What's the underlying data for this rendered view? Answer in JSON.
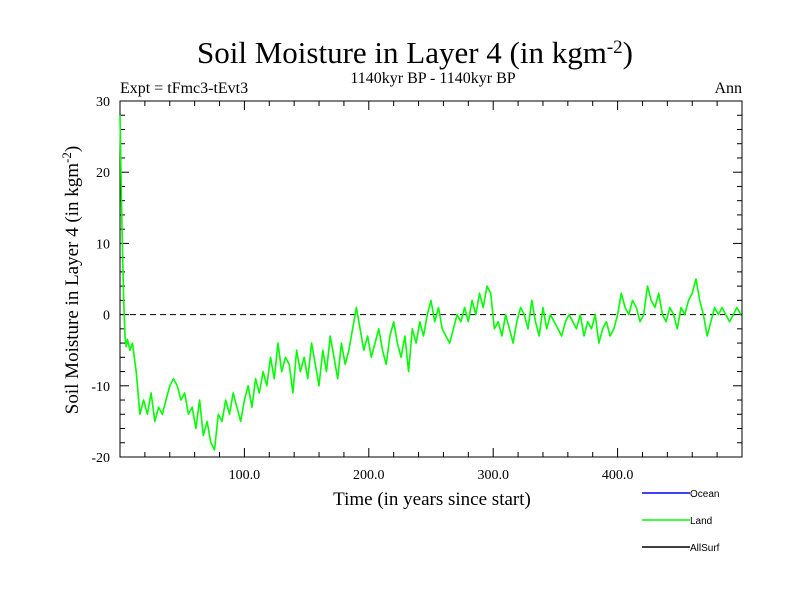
{
  "chart_data": {
    "type": "line",
    "title": "Soil Moisture in Layer 4 (in kgm",
    "title_superscript": "-2",
    "title_close": ")",
    "subtitle_left": "Expt = tFmc3-tEvt3",
    "subtitle_center": "1140kyr BP - 1140kyr BP",
    "subtitle_right": "Ann",
    "xlabel": "Time (in years since start)",
    "ylabel": "Soil Moisture in Layer 4 (in kgm",
    "ylabel_superscript": "-2",
    "ylabel_close": ")",
    "xlim": [
      0,
      500
    ],
    "ylim": [
      -20,
      30
    ],
    "xticks": [
      100,
      200,
      300,
      400
    ],
    "xtick_labels": [
      "100.0",
      "200.0",
      "300.0",
      "400.0"
    ],
    "yticks": [
      -20,
      -10,
      0,
      10,
      20,
      30
    ],
    "ytick_labels": [
      "-20",
      "-10",
      "0",
      "10",
      "20",
      "30"
    ],
    "reference_line": 0,
    "legend": [
      {
        "name": "Ocean",
        "color": "#0000ff"
      },
      {
        "name": "Land",
        "color": "#00ff00"
      },
      {
        "name": "AllSurf",
        "color": "#000000"
      }
    ],
    "series": [
      {
        "name": "Land",
        "color": "#00ff00",
        "x": [
          0,
          1,
          2,
          3,
          4,
          5,
          6,
          8,
          10,
          13,
          16,
          19,
          22,
          25,
          28,
          31,
          34,
          37,
          40,
          43,
          46,
          49,
          52,
          55,
          58,
          61,
          64,
          67,
          70,
          73,
          76,
          79,
          82,
          85,
          88,
          91,
          94,
          97,
          100,
          103,
          106,
          109,
          112,
          115,
          118,
          121,
          124,
          127,
          130,
          133,
          136,
          139,
          142,
          145,
          148,
          151,
          154,
          157,
          160,
          163,
          166,
          169,
          172,
          175,
          178,
          181,
          184,
          187,
          190,
          193,
          196,
          199,
          202,
          205,
          208,
          211,
          214,
          217,
          220,
          223,
          226,
          229,
          232,
          235,
          238,
          241,
          244,
          247,
          250,
          253,
          256,
          259,
          262,
          265,
          268,
          271,
          274,
          277,
          280,
          283,
          286,
          289,
          292,
          295,
          298,
          301,
          304,
          307,
          310,
          313,
          316,
          319,
          322,
          325,
          328,
          331,
          334,
          337,
          340,
          343,
          346,
          349,
          352,
          355,
          358,
          361,
          364,
          367,
          370,
          373,
          376,
          379,
          382,
          385,
          388,
          391,
          394,
          397,
          400,
          403,
          406,
          409,
          412,
          415,
          418,
          421,
          424,
          427,
          430,
          433,
          436,
          439,
          442,
          445,
          448,
          451,
          454,
          457,
          460,
          463,
          466,
          469,
          472,
          475,
          478,
          481,
          484,
          487,
          490,
          493,
          496,
          499
        ],
        "values": [
          28,
          18,
          9,
          2,
          -3,
          -4.5,
          -3.5,
          -5,
          -4,
          -8,
          -14,
          -12,
          -14,
          -11,
          -15,
          -13,
          -14,
          -12,
          -10,
          -9,
          -10,
          -12,
          -11,
          -14,
          -13,
          -16,
          -12,
          -17,
          -15,
          -18,
          -19,
          -14,
          -15,
          -12,
          -14,
          -11,
          -13,
          -15,
          -12,
          -10,
          -13,
          -9,
          -11,
          -8,
          -10,
          -6,
          -9,
          -4,
          -8,
          -6,
          -7,
          -11,
          -5,
          -8,
          -6,
          -9,
          -4,
          -7,
          -10,
          -5,
          -8,
          -3,
          -6,
          -9,
          -4,
          -7,
          -5,
          -2,
          1,
          -2,
          -5,
          -3,
          -6,
          -4,
          -2,
          -5,
          -7,
          -3,
          -1,
          -4,
          -6,
          -3,
          -8,
          -2,
          -4,
          -1,
          -3,
          0,
          2,
          -1,
          1,
          -2,
          -3,
          -4,
          -2,
          0,
          -1,
          1,
          -1,
          2,
          0,
          3,
          1,
          4,
          3,
          -2,
          -1,
          -3,
          0,
          -2,
          -4,
          -1,
          1,
          0,
          -2,
          2,
          -1,
          -3,
          1,
          -2,
          0,
          -1,
          -2,
          -3,
          -1,
          0,
          -1,
          -2,
          0,
          -3,
          -1,
          -2,
          0,
          -4,
          -2,
          -1,
          -3,
          -2,
          0,
          3,
          1,
          0,
          2,
          1,
          -1,
          0,
          4,
          2,
          1,
          3,
          0,
          -1,
          1,
          0,
          -2,
          1,
          0,
          2,
          3,
          5,
          2,
          0,
          -3,
          -1,
          1,
          0,
          1,
          0,
          -1,
          0,
          1,
          0
        ]
      }
    ]
  }
}
